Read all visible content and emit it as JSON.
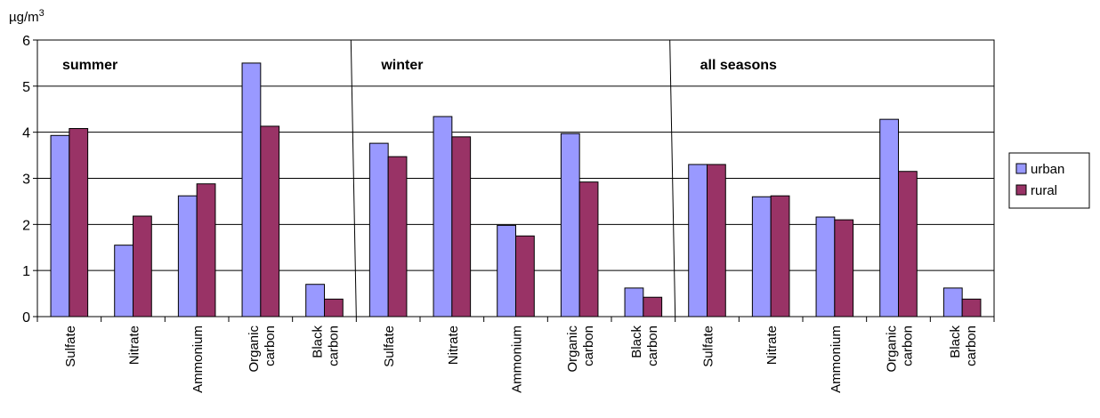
{
  "chart_data": {
    "type": "bar",
    "ylabel": "µg/m3",
    "ylabel_main": "µg/m",
    "ylabel_sup": "3",
    "ylim": [
      0,
      6
    ],
    "yticks": [
      0,
      1,
      2,
      3,
      4,
      5,
      6
    ],
    "grid": true,
    "legend_position": "right",
    "groups": [
      "summer",
      "winter",
      "all seasons"
    ],
    "categories": [
      [
        "Sulfate"
      ],
      [
        "Nitrate"
      ],
      [
        "Ammonium"
      ],
      [
        "Organic",
        "carbon"
      ],
      [
        "Black",
        "carbon"
      ],
      [
        "Sulfate"
      ],
      [
        "Nitrate"
      ],
      [
        "Ammonium"
      ],
      [
        "Organic",
        "carbon"
      ],
      [
        "Black",
        "carbon"
      ],
      [
        "Sulfate"
      ],
      [
        "Nitrate"
      ],
      [
        "Ammonium"
      ],
      [
        "Organic",
        "carbon"
      ],
      [
        "Black",
        "carbon"
      ]
    ],
    "series": [
      {
        "name": "urban",
        "color": "#9999ff",
        "values": [
          3.93,
          1.55,
          2.62,
          5.5,
          0.7,
          3.76,
          4.34,
          1.98,
          3.97,
          0.62,
          3.3,
          2.6,
          2.16,
          4.28,
          0.62
        ]
      },
      {
        "name": "rural",
        "color": "#993366",
        "values": [
          4.08,
          2.18,
          2.88,
          4.13,
          0.38,
          3.47,
          3.9,
          1.75,
          2.92,
          0.42,
          3.3,
          2.62,
          2.1,
          3.15,
          0.38
        ]
      }
    ]
  }
}
